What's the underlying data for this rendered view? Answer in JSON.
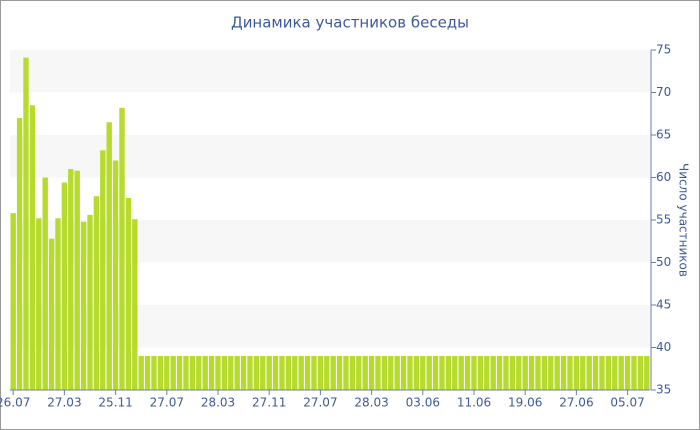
{
  "chart_data": {
    "type": "bar",
    "title": "Динамика участников беседы",
    "y_label": "Число участников",
    "categories": [
      "26.07",
      null,
      null,
      null,
      null,
      null,
      null,
      null,
      "27.03",
      null,
      null,
      null,
      null,
      null,
      null,
      null,
      "25.11",
      null,
      null,
      null,
      null,
      null,
      null,
      null,
      "27.07",
      null,
      null,
      null,
      null,
      null,
      null,
      null,
      "28.03",
      null,
      null,
      null,
      null,
      null,
      null,
      null,
      "27.11",
      null,
      null,
      null,
      null,
      null,
      null,
      null,
      "27.07",
      null,
      null,
      null,
      null,
      null,
      null,
      null,
      "28.03",
      null,
      null,
      null,
      null,
      null,
      null,
      null,
      "03.06",
      null,
      null,
      null,
      null,
      null,
      null,
      null,
      "11.06",
      null,
      null,
      null,
      null,
      null,
      null,
      null,
      "19.06",
      null,
      null,
      null,
      null,
      null,
      null,
      null,
      "27.06",
      null,
      null,
      null,
      null,
      null,
      null,
      null,
      "05.07",
      null,
      null,
      null
    ],
    "values": [
      55.8,
      67,
      74.1,
      68.5,
      55.2,
      60,
      52.8,
      55.2,
      59.4,
      61,
      60.8,
      54.8,
      55.6,
      57.8,
      63.2,
      66.5,
      62,
      68.2,
      57.6,
      55.1,
      39,
      39,
      39,
      39,
      39,
      39,
      39,
      39,
      39,
      39,
      39,
      39,
      39,
      39,
      39,
      39,
      39,
      39,
      39,
      39,
      39,
      39,
      39,
      39,
      39,
      39,
      39,
      39,
      39,
      39,
      39,
      39,
      39,
      39,
      39,
      39,
      39,
      39,
      39,
      39,
      39,
      39,
      39,
      39,
      39,
      39,
      39,
      39,
      39,
      39,
      39,
      39,
      39,
      39,
      39,
      39,
      39,
      39,
      39,
      39,
      39,
      39,
      39,
      39,
      39,
      39,
      39,
      39,
      39,
      39,
      39,
      39,
      39,
      39,
      39,
      39,
      39,
      39,
      39,
      39
    ],
    "color": "#b7db2c",
    "ylim": [
      35,
      75
    ],
    "yticks": [
      35,
      40,
      45,
      50,
      55,
      60,
      65,
      70,
      75
    ],
    "grid": true,
    "y_axis_side": "right"
  }
}
